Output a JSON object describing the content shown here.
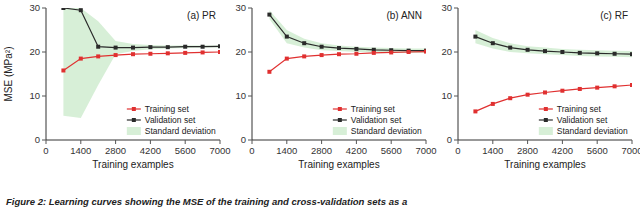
{
  "chart_data": [
    {
      "type": "line",
      "title": "(a) PR",
      "x": [
        700,
        1400,
        2100,
        2800,
        3500,
        4200,
        4900,
        5600,
        6300,
        7000
      ],
      "xlabel": "Training examples",
      "ylabel": "MSE (MPa²)",
      "xlim": [
        0,
        7000
      ],
      "ylim": [
        0,
        30
      ],
      "xticks": [
        0,
        1400,
        2800,
        4200,
        5600,
        7000
      ],
      "yticks": [
        0,
        10,
        20,
        30
      ],
      "legend": "lower right",
      "series": [
        {
          "name": "Training set",
          "color": "#e03030",
          "marker": "square",
          "values": [
            15.8,
            18.5,
            19.0,
            19.3,
            19.5,
            19.6,
            19.7,
            19.8,
            19.9,
            20.0
          ]
        },
        {
          "name": "Validation set",
          "color": "#2a2a2a",
          "marker": "square",
          "values": [
            30.0,
            29.5,
            21.2,
            21.0,
            21.0,
            21.1,
            21.1,
            21.2,
            21.2,
            21.3
          ]
        },
        {
          "name": "Standard deviation",
          "type": "band",
          "color": "#bde5bd",
          "upper": [
            30.0,
            30.0,
            27.0,
            22.5,
            21.8,
            21.6,
            21.5,
            21.5,
            21.5,
            21.5
          ],
          "lower": [
            5.5,
            5.0,
            12.5,
            19.5,
            20.2,
            20.6,
            20.8,
            20.9,
            21.0,
            21.0
          ]
        }
      ]
    },
    {
      "type": "line",
      "title": "(b) ANN",
      "x": [
        700,
        1400,
        2100,
        2800,
        3500,
        4200,
        4900,
        5600,
        6300,
        7000
      ],
      "xlabel": "Training examples",
      "xlim": [
        0,
        7000
      ],
      "ylim": [
        0,
        30
      ],
      "xticks": [
        0,
        1400,
        2800,
        4200,
        5600,
        7000
      ],
      "yticks": [
        0,
        10,
        20,
        30
      ],
      "legend": "lower right",
      "series": [
        {
          "name": "Training set",
          "color": "#e03030",
          "marker": "square",
          "values": [
            15.5,
            18.5,
            19.0,
            19.3,
            19.5,
            19.6,
            19.8,
            19.9,
            20.0,
            20.1
          ]
        },
        {
          "name": "Validation set",
          "color": "#2a2a2a",
          "marker": "square",
          "values": [
            28.5,
            23.5,
            22.0,
            21.2,
            20.9,
            20.7,
            20.5,
            20.4,
            20.3,
            20.3
          ]
        },
        {
          "name": "Standard deviation",
          "type": "band",
          "color": "#bde5bd",
          "upper": [
            29.5,
            25.0,
            23.0,
            22.0,
            21.5,
            21.2,
            21.0,
            20.9,
            20.8,
            20.8
          ],
          "lower": [
            27.5,
            22.0,
            21.0,
            20.4,
            20.2,
            20.0,
            19.9,
            19.8,
            19.8,
            19.8
          ]
        }
      ]
    },
    {
      "type": "line",
      "title": "(c) RF",
      "x": [
        700,
        1400,
        2100,
        2800,
        3500,
        4200,
        4900,
        5600,
        6300,
        7000
      ],
      "xlabel": "Training examples",
      "xlim": [
        0,
        7000
      ],
      "ylim": [
        0,
        30
      ],
      "xticks": [
        0,
        1400,
        2800,
        4200,
        5600,
        7000
      ],
      "yticks": [
        0,
        10,
        20,
        30
      ],
      "legend": "lower right",
      "series": [
        {
          "name": "Training set",
          "color": "#e03030",
          "marker": "square",
          "values": [
            6.5,
            8.2,
            9.5,
            10.3,
            10.8,
            11.2,
            11.6,
            11.9,
            12.2,
            12.5
          ]
        },
        {
          "name": "Validation set",
          "color": "#2a2a2a",
          "marker": "square",
          "values": [
            23.5,
            22.0,
            21.0,
            20.5,
            20.2,
            20.0,
            19.8,
            19.7,
            19.6,
            19.5
          ]
        },
        {
          "name": "Standard deviation",
          "type": "band",
          "color": "#bde5bd",
          "upper": [
            25.0,
            23.2,
            22.0,
            21.3,
            21.0,
            20.7,
            20.5,
            20.4,
            20.3,
            20.2
          ],
          "lower": [
            22.0,
            20.8,
            20.0,
            19.7,
            19.5,
            19.3,
            19.1,
            19.0,
            18.9,
            18.8
          ]
        }
      ]
    }
  ],
  "caption": "Figure 2: Learning curves showing the MSE of the training and cross-validation sets as a"
}
